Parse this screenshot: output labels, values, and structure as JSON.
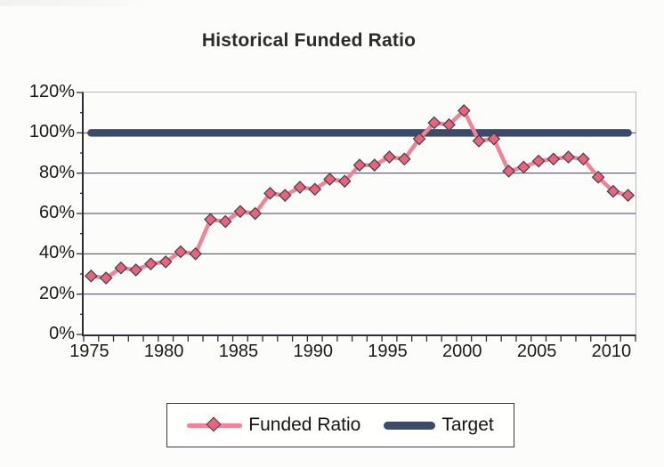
{
  "chart_data": {
    "type": "line",
    "title": "Historical Funded Ratio",
    "x": [
      1975,
      1976,
      1977,
      1978,
      1979,
      1980,
      1981,
      1982,
      1983,
      1984,
      1985,
      1986,
      1987,
      1988,
      1989,
      1990,
      1991,
      1992,
      1993,
      1994,
      1995,
      1996,
      1997,
      1998,
      1999,
      2000,
      2001,
      2002,
      2003,
      2004,
      2005,
      2006,
      2007,
      2008,
      2009,
      2010,
      2011
    ],
    "x_tick_labels": [
      "1975",
      "1980",
      "1985",
      "1990",
      "1995",
      "2000",
      "2005",
      "2010"
    ],
    "y_tick_labels": [
      "0%",
      "20%",
      "40%",
      "60%",
      "80%",
      "100%",
      "120%"
    ],
    "ylim": [
      0,
      120
    ],
    "y_major_step": 20,
    "y_minor_step": 10,
    "grid": "horizontal-on",
    "legend_position": "bottom-center",
    "series": [
      {
        "name": "Funded Ratio",
        "style": "line-with-diamond-markers",
        "color": "#ef8496",
        "marker_fill": "#e86478",
        "marker_stroke": "#3f3f52",
        "values": [
          29,
          28,
          33,
          32,
          35,
          36,
          41,
          40,
          57,
          56,
          61,
          60,
          70,
          69,
          73,
          72,
          77,
          76,
          84,
          84,
          88,
          87,
          97,
          105,
          104,
          111,
          96,
          97,
          81,
          83,
          86,
          87,
          88,
          87,
          78,
          71,
          69
        ]
      },
      {
        "name": "Target",
        "style": "thick-horizontal-line",
        "color": "#3c4b6a",
        "constant_value": 100
      }
    ],
    "colors": {
      "gridline": "#42425c",
      "axis": "#2d2d38",
      "frame_light": "#b8b8b8",
      "text": "#1a1a1a"
    }
  }
}
